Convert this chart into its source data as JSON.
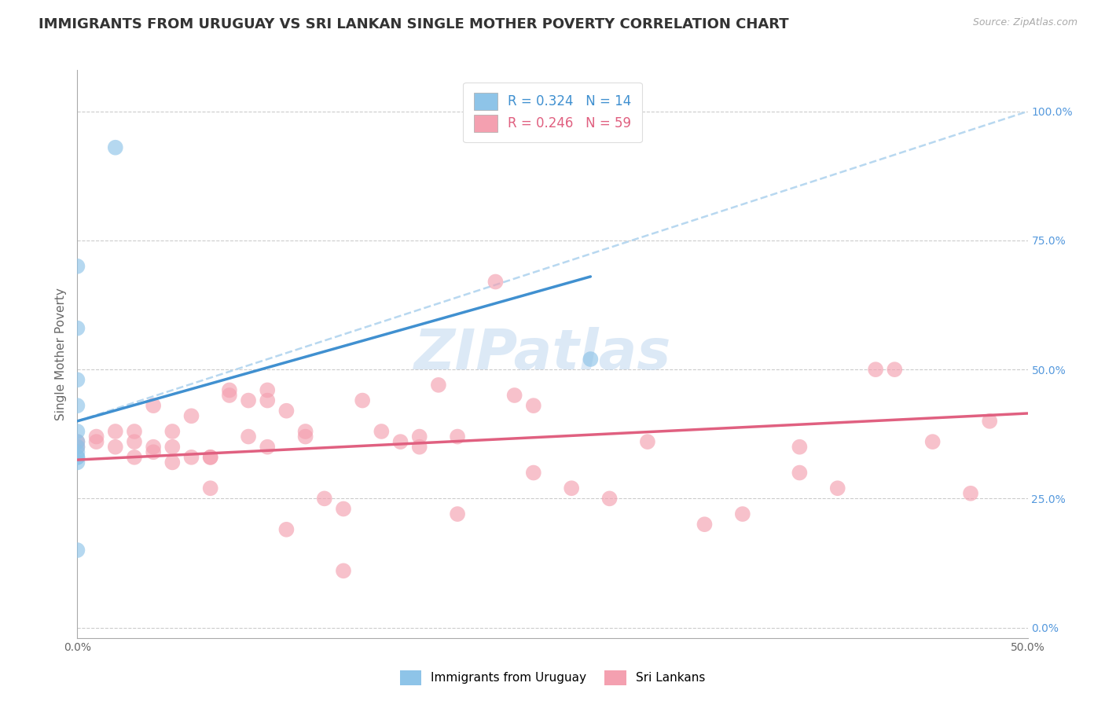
{
  "title": "IMMIGRANTS FROM URUGUAY VS SRI LANKAN SINGLE MOTHER POVERTY CORRELATION CHART",
  "source": "Source: ZipAtlas.com",
  "ylabel": "Single Mother Poverty",
  "xlim": [
    0.0,
    0.5
  ],
  "ylim": [
    -0.02,
    1.08
  ],
  "x_tick_positions": [
    0.0,
    0.1,
    0.2,
    0.3,
    0.4,
    0.5
  ],
  "x_tick_labels": [
    "0.0%",
    "",
    "",
    "",
    "",
    "50.0%"
  ],
  "y_tick_positions_right": [
    0.0,
    0.25,
    0.5,
    0.75,
    1.0
  ],
  "y_tick_labels_right": [
    "0.0%",
    "25.0%",
    "50.0%",
    "75.0%",
    "100.0%"
  ],
  "legend_line1": "R = 0.324   N = 14",
  "legend_line2": "R = 0.246   N = 59",
  "color_uruguay": "#8ec4e8",
  "color_srilanka": "#f4a0b0",
  "color_line_uruguay": "#4090d0",
  "color_line_srilanka": "#e06080",
  "color_line_dashed": "#b8d8f0",
  "watermark_text": "ZIPatlas",
  "uruguay_scatter_x": [
    0.02,
    0.0,
    0.0,
    0.0,
    0.0,
    0.0,
    0.0,
    0.0,
    0.0,
    0.0,
    0.0,
    0.27,
    0.0,
    0.0
  ],
  "uruguay_scatter_y": [
    0.93,
    0.7,
    0.58,
    0.48,
    0.43,
    0.38,
    0.36,
    0.35,
    0.34,
    0.33,
    0.15,
    0.52,
    0.33,
    0.32
  ],
  "srilanka_scatter_x": [
    0.0,
    0.0,
    0.01,
    0.01,
    0.02,
    0.02,
    0.03,
    0.03,
    0.03,
    0.04,
    0.04,
    0.04,
    0.05,
    0.05,
    0.05,
    0.06,
    0.06,
    0.07,
    0.07,
    0.07,
    0.08,
    0.08,
    0.09,
    0.09,
    0.1,
    0.1,
    0.1,
    0.11,
    0.11,
    0.12,
    0.12,
    0.13,
    0.14,
    0.14,
    0.15,
    0.16,
    0.17,
    0.18,
    0.18,
    0.19,
    0.2,
    0.2,
    0.22,
    0.23,
    0.24,
    0.24,
    0.26,
    0.28,
    0.3,
    0.33,
    0.35,
    0.38,
    0.38,
    0.4,
    0.42,
    0.43,
    0.45,
    0.47,
    0.48
  ],
  "srilanka_scatter_y": [
    0.36,
    0.35,
    0.37,
    0.36,
    0.35,
    0.38,
    0.36,
    0.33,
    0.38,
    0.35,
    0.34,
    0.43,
    0.32,
    0.35,
    0.38,
    0.33,
    0.41,
    0.33,
    0.27,
    0.33,
    0.45,
    0.46,
    0.44,
    0.37,
    0.35,
    0.44,
    0.46,
    0.42,
    0.19,
    0.37,
    0.38,
    0.25,
    0.23,
    0.11,
    0.44,
    0.38,
    0.36,
    0.35,
    0.37,
    0.47,
    0.22,
    0.37,
    0.67,
    0.45,
    0.3,
    0.43,
    0.27,
    0.25,
    0.36,
    0.2,
    0.22,
    0.35,
    0.3,
    0.27,
    0.5,
    0.5,
    0.36,
    0.26,
    0.4
  ],
  "uruguay_line_x": [
    0.0,
    0.27
  ],
  "uruguay_line_y": [
    0.4,
    0.68
  ],
  "srilanka_line_x": [
    0.0,
    0.5
  ],
  "srilanka_line_y": [
    0.325,
    0.415
  ],
  "dashed_line_x": [
    0.0,
    0.5
  ],
  "dashed_line_y": [
    0.4,
    1.0
  ],
  "background_color": "#ffffff",
  "grid_color": "#cccccc",
  "title_fontsize": 13,
  "axis_label_fontsize": 11,
  "tick_fontsize": 10,
  "legend_fontsize": 12,
  "watermark_fontsize": 52
}
